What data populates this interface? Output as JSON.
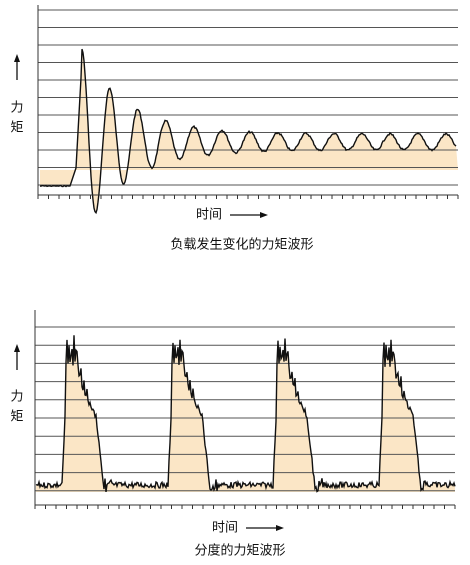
{
  "top": {
    "y_label_1": "力",
    "y_label_2": "矩",
    "x_label": "时间",
    "caption": "负载发生变化的力矩波形"
  },
  "bottom": {
    "y_label_1": "力",
    "y_label_2": "矩",
    "x_label": "时间",
    "caption": "分度的力矩波形"
  }
}
